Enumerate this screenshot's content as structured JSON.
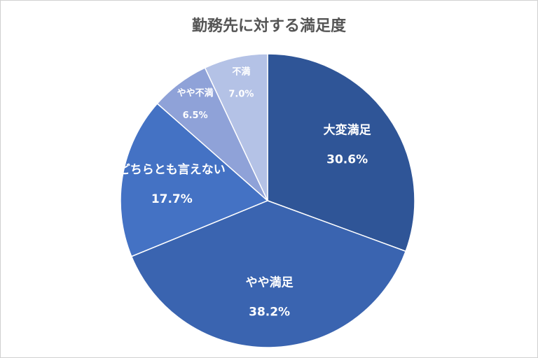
{
  "chart_data": {
    "type": "pie",
    "title": "勤務先に対する満足度",
    "categories": [
      "大変満足",
      "やや満足",
      "どちらとも言えない",
      "やや不満",
      "不満"
    ],
    "values": [
      30.6,
      38.2,
      17.7,
      6.5,
      7.0
    ],
    "value_labels": [
      "30.6%",
      "38.2%",
      "17.7%",
      "6.5%",
      "7.0%"
    ],
    "colors": [
      "#2f5597",
      "#3a64b0",
      "#4472c4",
      "#8fa2d8",
      "#b4c2e6"
    ]
  }
}
